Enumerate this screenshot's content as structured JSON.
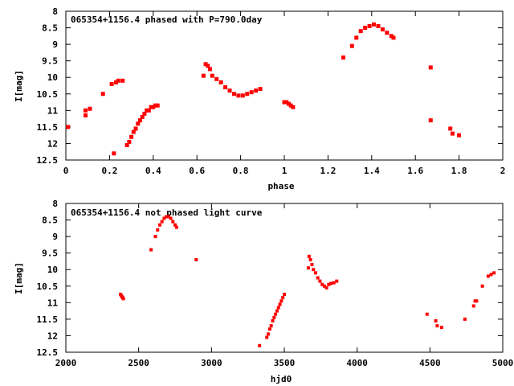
{
  "chart_data": [
    {
      "type": "scatter",
      "title": "065354+1156.4 phased with P=790.0day",
      "xlabel": "phase",
      "ylabel": "I[mag]",
      "xlim": [
        0,
        2
      ],
      "ylim": [
        12.5,
        8
      ],
      "y_inverted": true,
      "grid": false,
      "legend": "none",
      "marker_color": "#ff0000",
      "xticks": [
        "0",
        "0.2",
        "0.4",
        "0.6",
        "0.8",
        "1",
        "1.2",
        "1.4",
        "1.6",
        "1.8",
        "2"
      ],
      "yticks": [
        "8",
        "8.5",
        "9",
        "9.5",
        "10",
        "10.5",
        "11",
        "11.5",
        "12",
        "12.5"
      ],
      "series": [
        {
          "x": [
            0.01,
            0.09,
            0.09,
            0.11,
            0.17,
            0.21,
            0.22,
            0.23,
            0.24,
            0.26,
            0.28,
            0.29,
            0.3,
            0.31,
            0.32,
            0.33,
            0.34,
            0.35,
            0.36,
            0.37,
            0.38,
            0.39,
            0.4,
            0.41,
            0.42,
            0.63,
            0.64,
            0.65,
            0.66,
            0.67,
            0.69,
            0.71,
            0.73,
            0.75,
            0.77,
            0.79,
            0.81,
            0.83,
            0.85,
            0.87,
            0.89,
            1.0,
            1.01,
            1.02,
            1.03,
            1.04,
            1.27,
            1.31,
            1.33,
            1.35,
            1.37,
            1.39,
            1.41,
            1.43,
            1.45,
            1.47,
            1.49,
            1.5,
            1.67,
            1.67,
            1.76,
            1.77,
            1.8
          ],
          "y": [
            11.5,
            11.15,
            11.0,
            10.95,
            10.5,
            10.2,
            12.3,
            10.15,
            10.1,
            10.1,
            12.05,
            11.95,
            11.8,
            11.65,
            11.55,
            11.4,
            11.3,
            11.2,
            11.1,
            11.0,
            11.0,
            10.9,
            10.9,
            10.85,
            10.85,
            9.95,
            9.6,
            9.65,
            9.75,
            9.95,
            10.05,
            10.15,
            10.3,
            10.4,
            10.5,
            10.55,
            10.55,
            10.5,
            10.45,
            10.4,
            10.35,
            10.75,
            10.75,
            10.8,
            10.85,
            10.9,
            9.4,
            9.05,
            8.8,
            8.6,
            8.5,
            8.45,
            8.4,
            8.45,
            8.55,
            8.65,
            8.75,
            8.8,
            9.7,
            11.3,
            11.55,
            11.7,
            11.75
          ]
        }
      ]
    },
    {
      "type": "scatter",
      "title": "065354+1156.4 not phased light curve",
      "xlabel": "hjd0",
      "ylabel": "I[mag]",
      "xlim": [
        2000,
        5000
      ],
      "ylim": [
        12.5,
        8
      ],
      "y_inverted": true,
      "grid": false,
      "legend": "none",
      "marker_color": "#ff0000",
      "xticks": [
        "2000",
        "2500",
        "3000",
        "3500",
        "4000",
        "4500",
        "5000"
      ],
      "yticks": [
        "8",
        "8.5",
        "9",
        "9.5",
        "10",
        "10.5",
        "11",
        "11.5",
        "12",
        "12.5"
      ],
      "series": [
        {
          "x": [
            2375,
            2380,
            2385,
            2390,
            2395,
            2585,
            2615,
            2630,
            2645,
            2660,
            2675,
            2690,
            2705,
            2720,
            2735,
            2750,
            2760,
            2895,
            3330,
            3380,
            3390,
            3400,
            3410,
            3420,
            3430,
            3440,
            3450,
            3460,
            3470,
            3480,
            3490,
            3500,
            3665,
            3670,
            3680,
            3690,
            3700,
            3715,
            3730,
            3745,
            3760,
            3775,
            3790,
            3805,
            3820,
            3840,
            3860,
            4480,
            4540,
            4550,
            4580,
            4740,
            4800,
            4810,
            4820,
            4860,
            4900,
            4920,
            4940
          ],
          "y": [
            10.75,
            10.78,
            10.82,
            10.85,
            10.88,
            9.4,
            9.0,
            8.8,
            8.65,
            8.55,
            8.45,
            8.4,
            8.4,
            8.45,
            8.55,
            8.65,
            8.72,
            9.7,
            12.3,
            12.05,
            11.95,
            11.8,
            11.7,
            11.55,
            11.45,
            11.35,
            11.25,
            11.15,
            11.05,
            10.95,
            10.85,
            10.75,
            9.95,
            9.6,
            9.7,
            9.85,
            10.0,
            10.1,
            10.25,
            10.35,
            10.45,
            10.5,
            10.55,
            10.45,
            10.42,
            10.4,
            10.35,
            11.35,
            11.55,
            11.7,
            11.75,
            11.5,
            11.1,
            10.95,
            10.95,
            10.5,
            10.2,
            10.15,
            10.1
          ]
        }
      ]
    }
  ]
}
